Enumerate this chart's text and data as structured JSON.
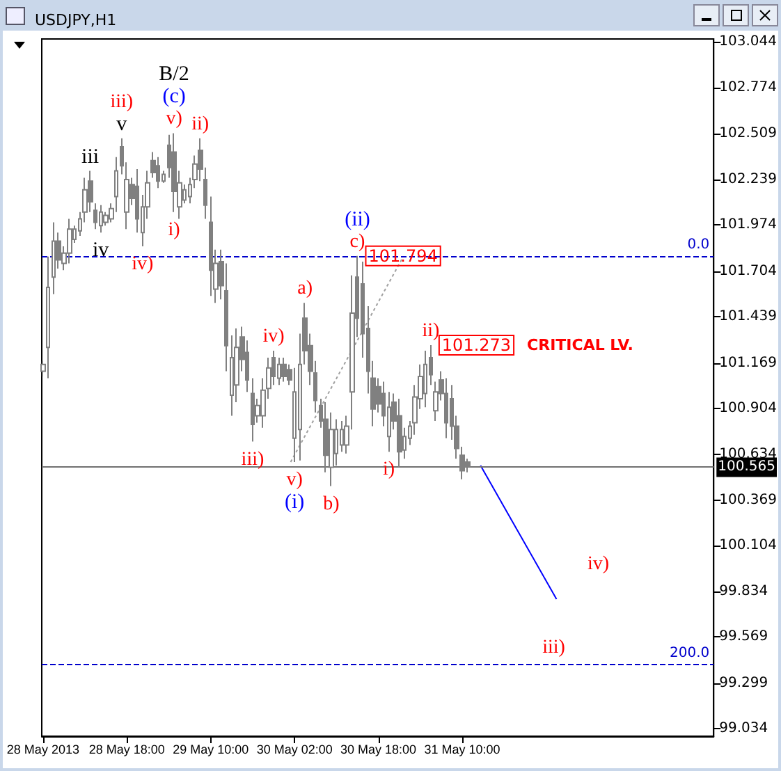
{
  "chart_data": {
    "type": "candlestick",
    "title": "USDJPY,H1",
    "color": "#808080",
    "marker": "none",
    "x": [
      "2013-05-28T02:00",
      "2013-05-28T03:00",
      "2013-05-28T04:00",
      "2013-05-28T05:00",
      "2013-05-28T06:00",
      "2013-05-28T07:00",
      "2013-05-28T08:00",
      "2013-05-28T09:00",
      "2013-05-28T10:00",
      "2013-05-28T11:00",
      "2013-05-28T12:00",
      "2013-05-28T13:00",
      "2013-05-28T14:00",
      "2013-05-28T15:00",
      "2013-05-28T16:00",
      "2013-05-28T17:00",
      "2013-05-28T18:00",
      "2013-05-28T19:00",
      "2013-05-28T20:00",
      "2013-05-28T21:00",
      "2013-05-28T22:00",
      "2013-05-28T23:00",
      "2013-05-29T00:00",
      "2013-05-29T01:00",
      "2013-05-29T02:00",
      "2013-05-29T03:00",
      "2013-05-29T04:00",
      "2013-05-29T05:00",
      "2013-05-29T06:00",
      "2013-05-29T07:00",
      "2013-05-29T08:00",
      "2013-05-29T09:00",
      "2013-05-29T10:00",
      "2013-05-29T11:00",
      "2013-05-29T12:00",
      "2013-05-29T13:00",
      "2013-05-29T14:00",
      "2013-05-29T15:00",
      "2013-05-29T16:00",
      "2013-05-29T17:00",
      "2013-05-29T18:00",
      "2013-05-29T19:00",
      "2013-05-29T20:00",
      "2013-05-29T21:00",
      "2013-05-29T22:00",
      "2013-05-29T23:00",
      "2013-05-30T00:00",
      "2013-05-30T01:00",
      "2013-05-30T02:00",
      "2013-05-30T03:00",
      "2013-05-30T04:00",
      "2013-05-30T05:00",
      "2013-05-30T06:00",
      "2013-05-30T07:00",
      "2013-05-30T08:00",
      "2013-05-30T09:00",
      "2013-05-30T10:00",
      "2013-05-30T11:00",
      "2013-05-30T12:00",
      "2013-05-30T13:00",
      "2013-05-30T14:00",
      "2013-05-30T15:00",
      "2013-05-30T16:00",
      "2013-05-30T17:00",
      "2013-05-30T18:00",
      "2013-05-30T19:00",
      "2013-05-30T20:00",
      "2013-05-30T21:00",
      "2013-05-30T22:00",
      "2013-05-30T23:00",
      "2013-05-31T00:00",
      "2013-05-31T01:00",
      "2013-05-31T02:00",
      "2013-05-31T03:00",
      "2013-05-31T04:00",
      "2013-05-31T05:00",
      "2013-05-31T06:00",
      "2013-05-31T07:00",
      "2013-05-31T08:00",
      "2013-05-31T09:00",
      "2013-05-31T10:00",
      "2013-05-31T11:00"
    ],
    "ohlc": [
      [
        101.12,
        101.18,
        101.09,
        101.16
      ],
      [
        101.26,
        101.79,
        101.08,
        101.61
      ],
      [
        101.67,
        101.99,
        101.57,
        101.88
      ],
      [
        101.88,
        101.93,
        101.72,
        101.77
      ],
      [
        101.75,
        101.85,
        101.71,
        101.81
      ],
      [
        101.81,
        102.01,
        101.75,
        101.95
      ],
      [
        101.89,
        101.97,
        101.87,
        101.95
      ],
      [
        101.94,
        102.05,
        101.91,
        102.01
      ],
      [
        102.05,
        102.25,
        101.99,
        102.18
      ],
      [
        102.23,
        102.29,
        102.05,
        102.11
      ],
      [
        102.06,
        102.1,
        101.95,
        101.99
      ],
      [
        101.97,
        102.09,
        101.93,
        102.05
      ],
      [
        101.99,
        102.05,
        101.97,
        102.03
      ],
      [
        102.01,
        102.1,
        101.99,
        102.07
      ],
      [
        102.14,
        102.37,
        102.05,
        102.29
      ],
      [
        102.43,
        102.48,
        102.27,
        102.32
      ],
      [
        102.05,
        102.34,
        101.95,
        102.24
      ],
      [
        102.21,
        102.25,
        102.09,
        102.13
      ],
      [
        102.2,
        102.3,
        101.93,
        102.01
      ],
      [
        101.93,
        102.15,
        101.85,
        102.08
      ],
      [
        102.08,
        102.29,
        102.01,
        102.22
      ],
      [
        102.35,
        102.4,
        102.25,
        102.28
      ],
      [
        102.32,
        102.37,
        102.19,
        102.23
      ],
      [
        102.23,
        102.29,
        102.22,
        102.27
      ],
      [
        102.44,
        102.5,
        102.25,
        102.31
      ],
      [
        102.4,
        102.51,
        102.05,
        102.17
      ],
      [
        102.08,
        102.29,
        102.01,
        102.22
      ],
      [
        102.12,
        102.21,
        102.1,
        102.18
      ],
      [
        102.14,
        102.25,
        102.1,
        102.21
      ],
      [
        102.24,
        102.38,
        102.19,
        102.33
      ],
      [
        102.41,
        102.48,
        102.23,
        102.3
      ],
      [
        102.24,
        102.31,
        102.01,
        102.09
      ],
      [
        101.99,
        102.14,
        101.56,
        101.71
      ],
      [
        101.6,
        101.83,
        101.52,
        101.75
      ],
      [
        101.76,
        101.83,
        101.54,
        101.62
      ],
      [
        101.59,
        101.75,
        101.12,
        101.27
      ],
      [
        100.98,
        101.33,
        100.86,
        101.2
      ],
      [
        101.04,
        101.37,
        100.94,
        101.26
      ],
      [
        101.32,
        101.38,
        101.12,
        101.19
      ],
      [
        101.23,
        101.3,
        101.0,
        101.07
      ],
      [
        100.99,
        101.08,
        100.71,
        100.81
      ],
      [
        100.86,
        100.96,
        100.82,
        100.92
      ],
      [
        100.86,
        101.08,
        100.79,
        101.01
      ],
      [
        101.02,
        101.2,
        100.96,
        101.14
      ],
      [
        101.2,
        101.24,
        101.04,
        101.09
      ],
      [
        101.08,
        101.2,
        101.04,
        101.16
      ],
      [
        101.16,
        101.2,
        101.06,
        101.09
      ],
      [
        101.13,
        101.16,
        101.04,
        101.07
      ],
      [
        100.73,
        101.14,
        100.59,
        101.0
      ],
      [
        100.78,
        101.34,
        100.6,
        101.16
      ],
      [
        101.43,
        101.52,
        101.16,
        101.24
      ],
      [
        101.27,
        101.34,
        101.04,
        101.12
      ],
      [
        101.11,
        101.18,
        100.88,
        100.95
      ],
      [
        100.92,
        100.96,
        100.79,
        100.83
      ],
      [
        100.84,
        100.94,
        100.53,
        100.63
      ],
      [
        100.56,
        100.88,
        100.45,
        100.78
      ],
      [
        100.64,
        100.84,
        100.57,
        100.78
      ],
      [
        100.69,
        100.83,
        100.65,
        100.78
      ],
      [
        100.69,
        100.86,
        100.64,
        100.8
      ],
      [
        101.0,
        101.68,
        100.78,
        101.46
      ],
      [
        101.67,
        101.794,
        101.32,
        101.43
      ],
      [
        101.63,
        101.76,
        101.2,
        101.34
      ],
      [
        101.37,
        101.5,
        100.99,
        101.12
      ],
      [
        101.08,
        101.18,
        100.8,
        100.9
      ],
      [
        101.03,
        101.08,
        100.88,
        100.93
      ],
      [
        100.99,
        101.06,
        100.8,
        100.86
      ],
      [
        100.74,
        101.0,
        100.65,
        100.91
      ],
      [
        100.94,
        100.99,
        100.78,
        100.83
      ],
      [
        100.86,
        100.96,
        100.56,
        100.65
      ],
      [
        100.66,
        100.79,
        100.61,
        100.74
      ],
      [
        100.73,
        100.83,
        100.69,
        100.8
      ],
      [
        100.82,
        101.04,
        100.75,
        100.97
      ],
      [
        100.96,
        101.16,
        100.9,
        101.09
      ],
      [
        100.99,
        101.24,
        100.91,
        101.16
      ],
      [
        101.2,
        101.273,
        101.04,
        101.1
      ],
      [
        100.89,
        101.06,
        100.83,
        101.0
      ],
      [
        101.07,
        101.12,
        100.95,
        100.99
      ],
      [
        100.99,
        101.08,
        100.73,
        100.82
      ],
      [
        100.96,
        101.04,
        100.72,
        100.8
      ],
      [
        100.8,
        100.86,
        100.61,
        100.67
      ],
      [
        100.63,
        100.68,
        100.49,
        100.54
      ],
      [
        100.59,
        100.61,
        100.53,
        100.565
      ]
    ],
    "series": [
      {
        "type": "line",
        "x": [
          "2013-05-30T01:15",
          "2013-05-30T22:45"
        ],
        "values": [
          100.59,
          101.79
        ],
        "color": "#a0a0a0",
        "line_style": "dotted"
      },
      {
        "type": "line",
        "x": [
          "2013-05-31T13:30",
          "2013-06-01T04:00"
        ],
        "values": [
          100.57,
          99.79
        ],
        "color": "#0000ff",
        "line_style": "solid"
      }
    ],
    "xlim": [
      "2013-05-28T01:45",
      "2013-06-02T10:00"
    ],
    "xticks": [
      {
        "value": "2013-05-28T02:00",
        "label": "28 May 2013"
      },
      {
        "value": "2013-05-28T18:00",
        "label": "28 May 18:00"
      },
      {
        "value": "2013-05-29T10:00",
        "label": "29 May 10:00"
      },
      {
        "value": "2013-05-30T02:00",
        "label": "30 May 02:00"
      },
      {
        "value": "2013-05-30T18:00",
        "label": "30 May 18:00"
      },
      {
        "value": "2013-05-31T10:00",
        "label": "31 May 10:00"
      }
    ],
    "ylim": [
      98.99,
      103.06
    ],
    "yticks": [
      {
        "value": 103.044,
        "label": "103.044"
      },
      {
        "value": 102.774,
        "label": "102.774"
      },
      {
        "value": 102.509,
        "label": "102.509"
      },
      {
        "value": 102.239,
        "label": "102.239"
      },
      {
        "value": 101.974,
        "label": "101.974"
      },
      {
        "value": 101.704,
        "label": "101.704"
      },
      {
        "value": 101.439,
        "label": "101.439"
      },
      {
        "value": 101.169,
        "label": "101.169"
      },
      {
        "value": 100.904,
        "label": "100.904"
      },
      {
        "value": 100.634,
        "label": "100.634"
      },
      {
        "value": 100.369,
        "label": "100.369"
      },
      {
        "value": 100.104,
        "label": "100.104"
      },
      {
        "value": 99.834,
        "label": "99.834"
      },
      {
        "value": 99.569,
        "label": "99.569"
      },
      {
        "value": 99.299,
        "label": "99.299"
      },
      {
        "value": 99.034,
        "label": "99.034"
      }
    ],
    "ref_lines": [
      {
        "axis": "y",
        "value": 101.794,
        "color": "#0000cc",
        "line_style": "dashed"
      },
      {
        "axis": "y",
        "value": 99.41,
        "color": "#0000cc",
        "line_style": "dashed"
      },
      {
        "axis": "y",
        "value": 100.565,
        "label": "100.565",
        "color": "#707070",
        "line_style": "solid"
      }
    ],
    "annotations": [
      {
        "text": "v",
        "x": "2013-05-28T17:00",
        "y": 102.48
      },
      {
        "text": "iii)",
        "x": "2013-05-28T17:00",
        "y": 102.48
      },
      {
        "text": "v)",
        "x": "2013-05-29T03:00",
        "y": 102.51
      },
      {
        "text": "(c)",
        "x": "2013-05-29T03:00",
        "y": 102.51
      },
      {
        "text": "B/2",
        "x": "2013-05-29T03:00",
        "y": 102.51
      },
      {
        "text": "ii)",
        "x": "2013-05-29T08:00",
        "y": 102.48
      },
      {
        "text": "iii",
        "x": "2013-05-28T11:00",
        "y": 102.29
      },
      {
        "text": "iv",
        "x": "2013-05-28T13:00",
        "y": 101.93
      },
      {
        "text": "iv)",
        "x": "2013-05-28T21:00",
        "y": 101.85
      },
      {
        "text": "i)",
        "x": "2013-05-29T03:00",
        "y": 102.05
      },
      {
        "text": "c)",
        "x": "2013-05-30T14:00",
        "y": 101.794
      },
      {
        "text": "(ii)",
        "x": "2013-05-30T14:00",
        "y": 101.794
      },
      {
        "text": "a)",
        "x": "2013-05-30T04:00",
        "y": 101.52
      },
      {
        "text": "iv)",
        "x": "2013-05-29T22:00",
        "y": 101.24
      },
      {
        "text": "iii)",
        "x": "2013-05-29T18:00",
        "y": 100.71
      },
      {
        "text": "v)",
        "x": "2013-05-30T02:00",
        "y": 100.59
      },
      {
        "text": "(i)",
        "x": "2013-05-30T02:00",
        "y": 100.59
      },
      {
        "text": "b)",
        "x": "2013-05-30T09:00",
        "y": 100.45
      },
      {
        "text": "i)",
        "x": "2013-05-30T20:00",
        "y": 100.65
      },
      {
        "text": "ii)",
        "x": "2013-05-31T04:00",
        "y": 101.273
      },
      "iv)",
      "iii)",
      {
        "text": "101.794",
        "x": "2013-05-30T14:00",
        "y": 101.794
      },
      {
        "text": "101.273",
        "x": "2013-05-31T04:00",
        "y": 101.273
      },
      "CRITICAL LV.",
      {
        "text": "0.0",
        "x": "2013-06-02T10:00",
        "y": 101.794
      },
      {
        "text": "200.0",
        "x": "2013-06-02T10:00",
        "y": 99.41
      }
    ]
  }
}
